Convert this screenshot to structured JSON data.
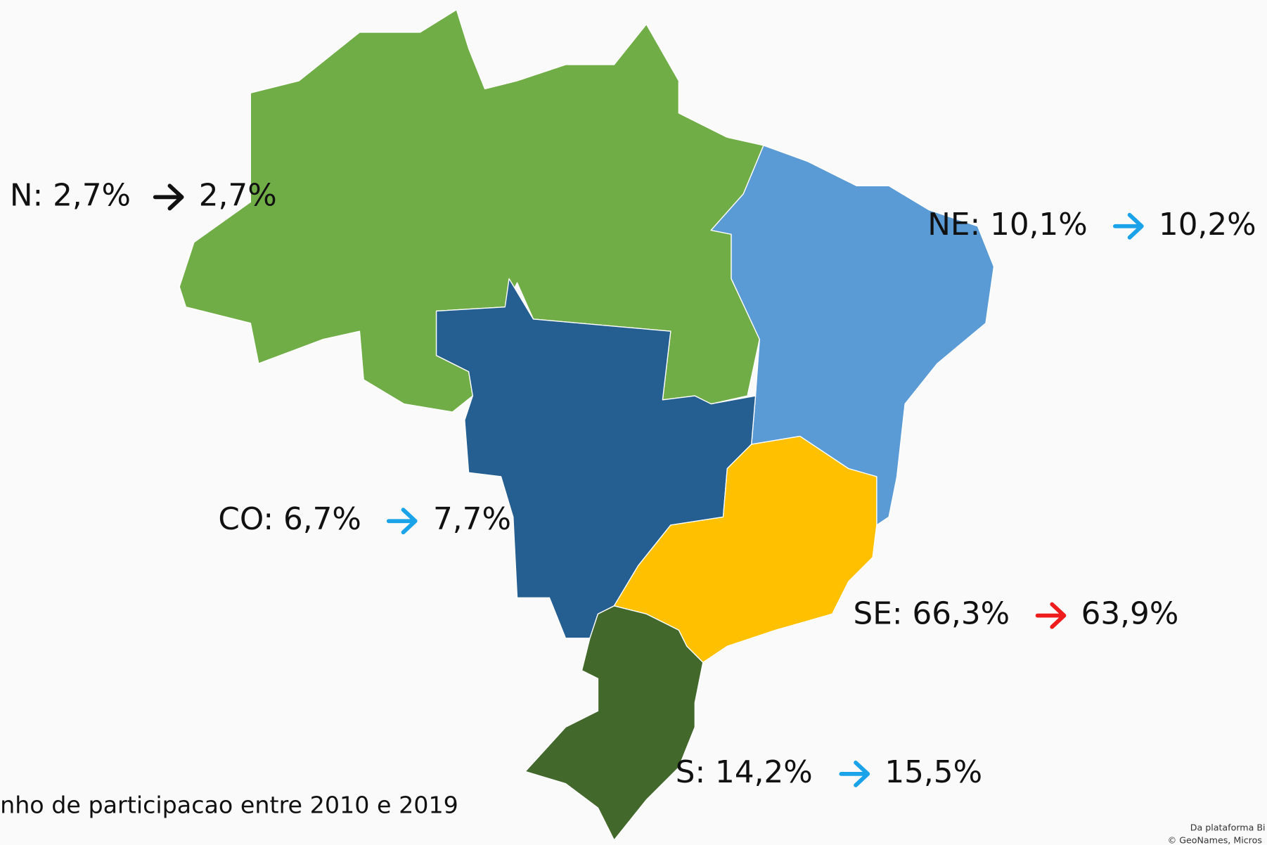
{
  "regions": [
    {
      "label": "N: 2,7%",
      "to": "2,7%",
      "color": "#70ad47",
      "arrow_color": "#111111"
    },
    {
      "label": "NE: 10,1%",
      "to": "10,2%",
      "color": "#5b9bd5",
      "arrow_color": "#1aa3e8"
    },
    {
      "label": "CO: 6,7%",
      "to": "7,7%",
      "color": "#255e91",
      "arrow_color": "#1aa3e8"
    },
    {
      "label": "SE: 66,3%",
      "to": "63,9%",
      "color": "#ffc000",
      "arrow_color": "#ee1c1c"
    },
    {
      "label": "S: 14,2%",
      "to": "15,5%",
      "color": "#43682b",
      "arrow_color": "#1aa3e8"
    }
  ],
  "footer": "nho de participacao entre 2010 e 2019",
  "attribution": [
    "Da plataforma Bi",
    "© GeoNames, Micros"
  ]
}
